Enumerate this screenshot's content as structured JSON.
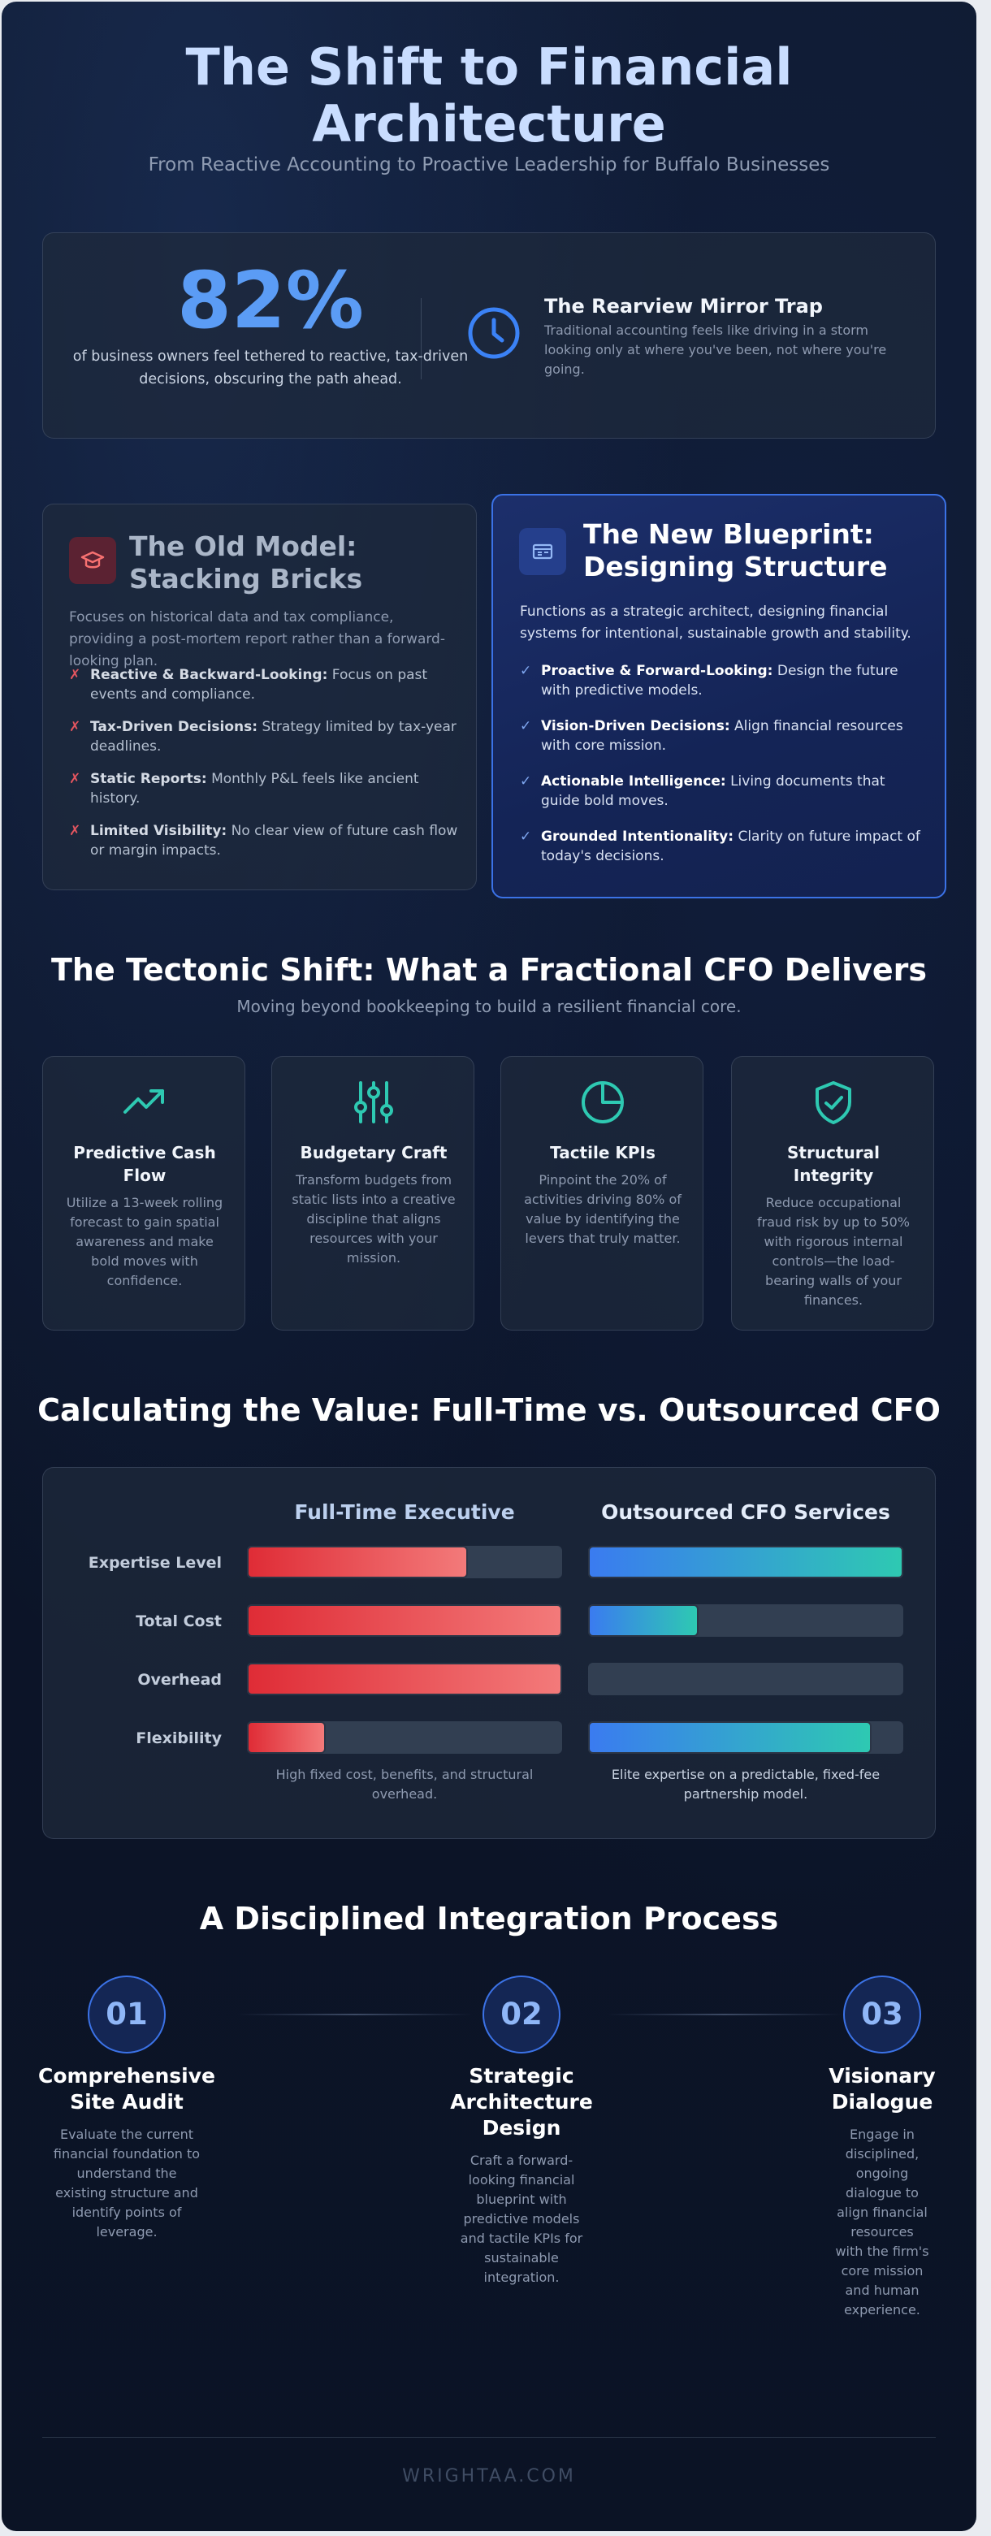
{
  "header": {
    "title": "The Shift to Financial Architecture",
    "subtitle": "From Reactive Accounting to Proactive Leadership for Buffalo Businesses"
  },
  "stat": {
    "value": "82%",
    "description": "of business owners feel tethered to reactive, tax-driven decisions, obscuring the path ahead.",
    "icon": "clock-icon",
    "trap_title": "The Rearview Mirror Trap",
    "trap_text": "Traditional accounting feels like driving in a storm looking only at where you've been, not where you're going."
  },
  "old_model": {
    "icon": "graduation-cap-icon",
    "title": "The Old Model: Stacking Bricks",
    "description": "Focuses on historical data and tax compliance, providing a post-mortem report rather than a forward-looking plan.",
    "mark": "✗",
    "items": [
      {
        "label": "Reactive & Backward-Looking:",
        "text": " Focus on past events and compliance."
      },
      {
        "label": "Tax-Driven Decisions:",
        "text": " Strategy limited by tax-year deadlines."
      },
      {
        "label": "Static Reports:",
        "text": " Monthly P&L feels like ancient history."
      },
      {
        "label": "Limited Visibility:",
        "text": " No clear view of future cash flow or margin impacts."
      }
    ]
  },
  "new_model": {
    "icon": "blueprint-icon",
    "title": "The New Blueprint: Designing Structure",
    "description": "Functions as a strategic architect, designing financial systems for intentional, sustainable growth and stability.",
    "mark": "✓",
    "items": [
      {
        "label": "Proactive & Forward-Looking:",
        "text": " Design the future with predictive models."
      },
      {
        "label": "Vision-Driven Decisions:",
        "text": " Align financial resources with core mission."
      },
      {
        "label": "Actionable Intelligence:",
        "text": " Living documents that guide bold moves."
      },
      {
        "label": "Grounded Intentionality:",
        "text": " Clarity on future impact of today's decisions."
      }
    ]
  },
  "tectonic": {
    "title": "The Tectonic Shift: What a Fractional CFO Delivers",
    "subtitle": "Moving beyond bookkeeping to build a resilient financial core.",
    "cards": [
      {
        "icon": "trending-up-icon",
        "title": "Predictive Cash Flow",
        "text": "Utilize a 13-week rolling forecast to gain spatial awareness and make bold moves with confidence."
      },
      {
        "icon": "sliders-icon",
        "title": "Budgetary Craft",
        "text": "Transform budgets from static lists into a creative discipline that aligns resources with your mission."
      },
      {
        "icon": "pie-chart-icon",
        "title": "Tactile KPIs",
        "text": "Pinpoint the 20% of activities driving 80% of value by identifying the levers that truly matter."
      },
      {
        "icon": "shield-check-icon",
        "title": "Structural Integrity",
        "text": "Reduce occupational fraud risk by up to 50% with rigorous internal controls—the load-bearing walls of your finances."
      }
    ]
  },
  "value": {
    "title": "Calculating the Value: Full-Time vs. Outsourced CFO",
    "col_fulltime": "Full-Time Executive",
    "col_outsourced": "Outsourced CFO Services",
    "rows": [
      {
        "label": "Expertise Level",
        "fulltime": 0.7,
        "outsourced": 1.0
      },
      {
        "label": "Total Cost",
        "fulltime": 1.0,
        "outsourced": 0.35
      },
      {
        "label": "Overhead",
        "fulltime": 1.0,
        "outsourced": 0.0
      },
      {
        "label": "Flexibility",
        "fulltime": 0.25,
        "outsourced": 0.9
      }
    ],
    "note_fulltime": "High fixed cost, benefits, and structural overhead.",
    "note_outsourced": "Elite expertise on a predictable, fixed-fee partnership model."
  },
  "process": {
    "title": "A Disciplined Integration Process",
    "steps": [
      {
        "number": "01",
        "title": "Comprehensive Site Audit",
        "text": "Evaluate the current financial foundation to understand the existing structure and identify points of leverage."
      },
      {
        "number": "02",
        "title": "Strategic Architecture Design",
        "text": "Craft a forward-looking financial blueprint with predictive models and tactile KPIs for sustainable integration."
      },
      {
        "number": "03",
        "title": "Visionary Dialogue",
        "text": "Engage in disciplined, ongoing dialogue to align financial resources with the firm's core mission and human experience."
      }
    ]
  },
  "footer": {
    "text": "WRIGHTAA.COM"
  }
}
